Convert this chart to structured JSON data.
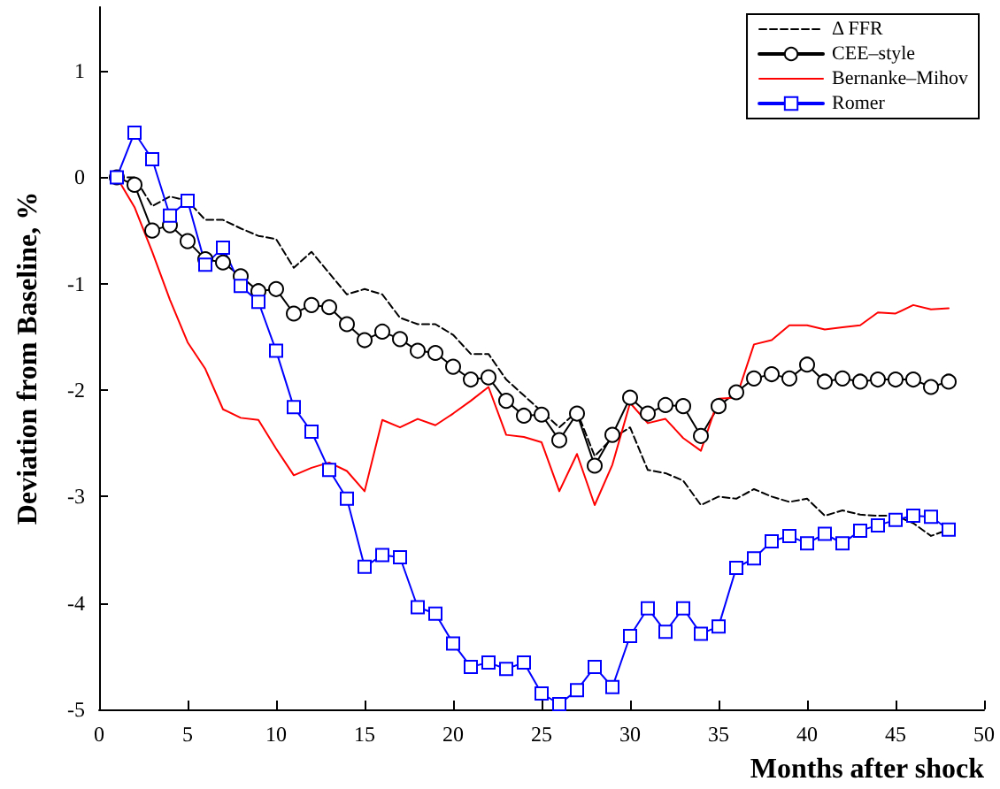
{
  "chart_data": {
    "type": "line",
    "xlabel": "Months after shock",
    "ylabel": "Deviation from Baseline, %",
    "x": [
      1,
      2,
      3,
      4,
      5,
      6,
      7,
      8,
      9,
      10,
      11,
      12,
      13,
      14,
      15,
      16,
      17,
      18,
      19,
      20,
      21,
      22,
      23,
      24,
      25,
      26,
      27,
      28,
      29,
      30,
      31,
      32,
      33,
      34,
      35,
      36,
      37,
      38,
      39,
      40,
      41,
      42,
      43,
      44,
      45,
      46,
      47,
      48
    ],
    "xlim": [
      0,
      50
    ],
    "xticks": [
      0,
      5,
      10,
      15,
      20,
      25,
      30,
      35,
      40,
      45,
      50
    ],
    "ylim": [
      -5,
      1.6
    ],
    "yticks": [
      -5,
      -4,
      -3,
      -2,
      -1,
      0,
      1
    ],
    "grid": false,
    "legend": "top right",
    "series": [
      {
        "name": "Δ FFR",
        "color": "#000000",
        "line_style": "dashed",
        "marker": "none",
        "values": [
          0,
          0,
          -0.27,
          -0.18,
          -0.22,
          -0.4,
          -0.4,
          -0.48,
          -0.55,
          -0.58,
          -0.85,
          -0.7,
          -0.9,
          -1.1,
          -1.05,
          -1.1,
          -1.32,
          -1.38,
          -1.38,
          -1.48,
          -1.66,
          -1.66,
          -1.9,
          -2.05,
          -2.2,
          -2.35,
          -2.2,
          -2.62,
          -2.45,
          -2.35,
          -2.75,
          -2.78,
          -2.85,
          -3.08,
          -3,
          -3.02,
          -2.93,
          -3,
          -3.05,
          -3.02,
          -3.18,
          -3.13,
          -3.17,
          -3.18,
          -3.18,
          -3.25,
          -3.37,
          -3.31
        ]
      },
      {
        "name": "CEE–style",
        "color": "#000000",
        "line_style": "solid",
        "marker": "circle",
        "values": [
          0,
          -0.07,
          -0.5,
          -0.45,
          -0.6,
          -0.77,
          -0.8,
          -0.93,
          -1.07,
          -1.05,
          -1.28,
          -1.2,
          -1.22,
          -1.38,
          -1.53,
          -1.45,
          -1.52,
          -1.63,
          -1.65,
          -1.78,
          -1.9,
          -1.88,
          -2.1,
          -2.24,
          -2.23,
          -2.47,
          -2.22,
          -2.71,
          -2.42,
          -2.07,
          -2.22,
          -2.14,
          -2.15,
          -2.43,
          -2.15,
          -2.02,
          -1.89,
          -1.85,
          -1.89,
          -1.76,
          -1.92,
          -1.89,
          -1.92,
          -1.9,
          -1.9,
          -1.9,
          -1.97,
          -1.92
        ]
      },
      {
        "name": "Bernanke–Mihov",
        "color": "#ff0000",
        "line_style": "solid",
        "marker": "none",
        "values": [
          0,
          -0.28,
          -0.7,
          -1.15,
          -1.55,
          -1.8,
          -2.18,
          -2.26,
          -2.28,
          -2.55,
          -2.8,
          -2.73,
          -2.68,
          -2.76,
          -2.95,
          -2.28,
          -2.35,
          -2.27,
          -2.33,
          -2.22,
          -2.1,
          -1.97,
          -2.42,
          -2.44,
          -2.49,
          -2.95,
          -2.6,
          -3.08,
          -2.7,
          -2.12,
          -2.31,
          -2.27,
          -2.45,
          -2.57,
          -2.08,
          -2.07,
          -1.57,
          -1.53,
          -1.39,
          -1.39,
          -1.43,
          -1.41,
          -1.39,
          -1.27,
          -1.28,
          -1.2,
          -1.24,
          -1.23
        ]
      },
      {
        "name": "Romer",
        "color": "#0000ff",
        "line_style": "solid",
        "marker": "square",
        "values": [
          0,
          0.42,
          0.17,
          -0.36,
          -0.22,
          -0.82,
          -0.66,
          -1.02,
          -1.17,
          -1.63,
          -2.16,
          -2.39,
          -2.75,
          -3.02,
          -3.66,
          -3.55,
          -3.57,
          -4.04,
          -4.1,
          -4.38,
          -4.6,
          -4.56,
          -4.62,
          -4.56,
          -4.85,
          -4.95,
          -4.82,
          -4.6,
          -4.79,
          -4.31,
          -4.05,
          -4.27,
          -4.05,
          -4.29,
          -4.22,
          -3.67,
          -3.58,
          -3.42,
          -3.37,
          -3.44,
          -3.35,
          -3.44,
          -3.32,
          -3.27,
          -3.22,
          -3.18,
          -3.19,
          -3.31
        ]
      }
    ]
  }
}
